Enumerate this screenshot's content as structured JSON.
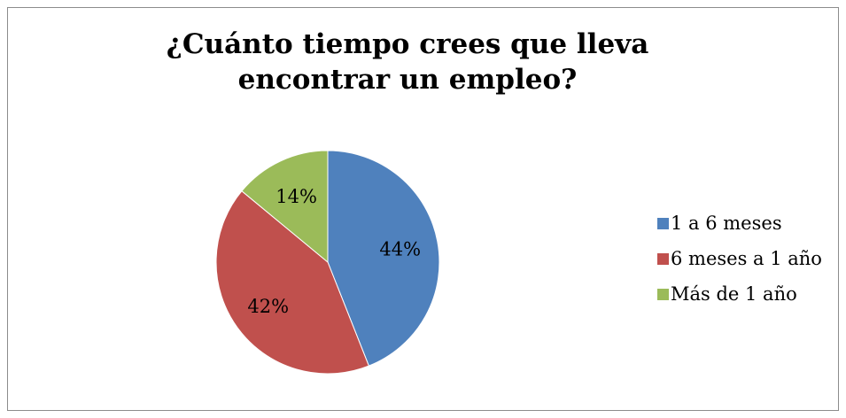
{
  "chart_data": {
    "type": "pie",
    "title": "¿Cuánto tiempo crees que lleva encontrar un empleo?",
    "categories": [
      "1 a 6 meses",
      "6 meses a 1 año",
      "Más de 1 año"
    ],
    "values": [
      44,
      42,
      14
    ],
    "data_labels": [
      "44%",
      "42%",
      "14%"
    ],
    "colors": [
      "#4f81bd",
      "#c0504d",
      "#9bbb59"
    ],
    "legend_position": "right",
    "start_angle": "top, clockwise"
  }
}
